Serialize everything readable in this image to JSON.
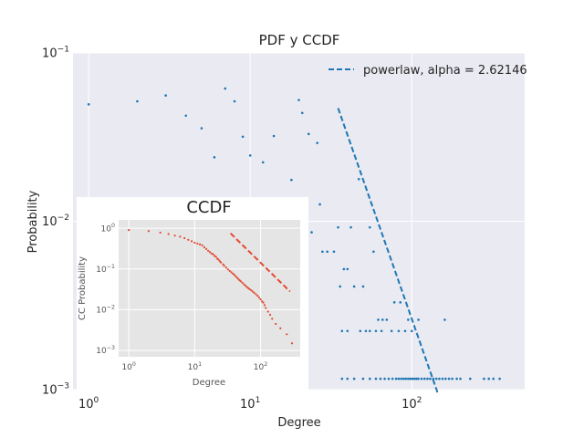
{
  "chart_data": [
    {
      "type": "scatter",
      "title": "PDF y CCDF",
      "xlabel": "Degree",
      "ylabel": "Probability",
      "xscale": "log",
      "yscale": "log",
      "xlim": [
        0.8,
        500
      ],
      "ylim": [
        0.001,
        0.1
      ],
      "grid": true,
      "legend_position": "top-right",
      "x_ticks": [
        {
          "value": 1,
          "base": "10",
          "exp": "0"
        },
        {
          "value": 10,
          "base": "10",
          "exp": "1"
        },
        {
          "value": 100,
          "base": "10",
          "exp": "2"
        }
      ],
      "y_ticks": [
        {
          "value": 0.1,
          "base": "10",
          "exp": "−1"
        },
        {
          "value": 0.01,
          "base": "10",
          "exp": "−2"
        },
        {
          "value": 0.001,
          "base": "10",
          "exp": "−3"
        }
      ],
      "series": [
        {
          "kind": "points",
          "color": "#1f77b4",
          "points": [
            [
              1,
              0.0495
            ],
            [
              2,
              0.0516
            ],
            [
              3,
              0.0559
            ],
            [
              4,
              0.0424
            ],
            [
              5,
              0.0357
            ],
            [
              6,
              0.024
            ],
            [
              7,
              0.0615
            ],
            [
              8,
              0.0516
            ],
            [
              9,
              0.0318
            ],
            [
              10,
              0.0246
            ],
            [
              12,
              0.0224
            ],
            [
              14,
              0.0321
            ],
            [
              16,
              0.0126
            ],
            [
              17,
              0.0126
            ],
            [
              18,
              0.0176
            ],
            [
              20,
              0.0525
            ],
            [
              21,
              0.044
            ],
            [
              23,
              0.033
            ],
            [
              24,
              0.0086
            ],
            [
              26,
              0.0292
            ],
            [
              27,
              0.0126
            ],
            [
              28,
              0.0066
            ],
            [
              30,
              0.0066
            ],
            [
              33,
              0.0066
            ],
            [
              35,
              0.0092
            ],
            [
              36,
              0.0041
            ],
            [
              38,
              0.0052
            ],
            [
              40,
              0.0052
            ],
            [
              42,
              0.0092
            ],
            [
              44,
              0.0041
            ],
            [
              47,
              0.0178
            ],
            [
              50,
              0.0041
            ],
            [
              55,
              0.0092
            ],
            [
              58,
              0.0066
            ],
            [
              62,
              0.0026
            ],
            [
              66,
              0.0026
            ],
            [
              70,
              0.0026
            ],
            [
              78,
              0.0033
            ],
            [
              85,
              0.0033
            ],
            [
              95,
              0.0026
            ],
            [
              110,
              0.0026
            ],
            [
              160,
              0.0026
            ],
            [
              37,
              0.00223
            ],
            [
              40,
              0.00223
            ],
            [
              48,
              0.00223
            ],
            [
              52,
              0.00223
            ],
            [
              55,
              0.00223
            ],
            [
              60,
              0.00223
            ],
            [
              65,
              0.00223
            ],
            [
              75,
              0.00223
            ],
            [
              83,
              0.00223
            ],
            [
              91,
              0.00223
            ],
            [
              100,
              0.00223
            ],
            [
              37,
              0.00116
            ],
            [
              40,
              0.00116
            ],
            [
              44,
              0.00116
            ],
            [
              50,
              0.00116
            ],
            [
              55,
              0.00116
            ],
            [
              60,
              0.00116
            ],
            [
              64,
              0.00116
            ],
            [
              68,
              0.00116
            ],
            [
              72,
              0.00116
            ],
            [
              76,
              0.00116
            ],
            [
              80,
              0.00116
            ],
            [
              83,
              0.00116
            ],
            [
              86,
              0.00116
            ],
            [
              89,
              0.00116
            ],
            [
              92,
              0.00116
            ],
            [
              95,
              0.00116
            ],
            [
              98,
              0.00116
            ],
            [
              101,
              0.00116
            ],
            [
              104,
              0.00116
            ],
            [
              107,
              0.00116
            ],
            [
              110,
              0.00116
            ],
            [
              115,
              0.00116
            ],
            [
              120,
              0.00116
            ],
            [
              125,
              0.00116
            ],
            [
              130,
              0.00116
            ],
            [
              136,
              0.00116
            ],
            [
              142,
              0.00116
            ],
            [
              148,
              0.00116
            ],
            [
              155,
              0.00116
            ],
            [
              162,
              0.00116
            ],
            [
              170,
              0.00116
            ],
            [
              178,
              0.00116
            ],
            [
              190,
              0.00116
            ],
            [
              200,
              0.00116
            ],
            [
              230,
              0.00116
            ],
            [
              280,
              0.00116
            ],
            [
              300,
              0.00116
            ],
            [
              320,
              0.00116
            ],
            [
              350,
              0.00116
            ]
          ]
        },
        {
          "kind": "dashed-line",
          "name": "powerlaw, alpha = 2.62146",
          "color": "#1f77b4",
          "points": [
            [
              35,
              0.047
            ],
            [
              145,
              0.00095
            ]
          ]
        }
      ]
    },
    {
      "type": "scatter",
      "title": "CCDF",
      "xlabel": "Degree",
      "ylabel": "CC Probability",
      "xscale": "log",
      "yscale": "log",
      "xlim": [
        0.7,
        400
      ],
      "ylim": [
        0.0007,
        1.6
      ],
      "x_ticks": [
        {
          "value": 1,
          "base": "10",
          "exp": "0"
        },
        {
          "value": 10,
          "base": "10",
          "exp": "1"
        },
        {
          "value": 100,
          "base": "10",
          "exp": "2"
        }
      ],
      "y_ticks": [
        {
          "value": 1,
          "base": "10",
          "exp": "0"
        },
        {
          "value": 0.1,
          "base": "10",
          "exp": "−1"
        },
        {
          "value": 0.01,
          "base": "10",
          "exp": "−2"
        },
        {
          "value": 0.001,
          "base": "10",
          "exp": "−3"
        }
      ],
      "series": [
        {
          "kind": "points",
          "color": "#e24a33",
          "points": [
            [
              1,
              0.9
            ],
            [
              2,
              0.85
            ],
            [
              3,
              0.78
            ],
            [
              4,
              0.72
            ],
            [
              5,
              0.66
            ],
            [
              6,
              0.62
            ],
            [
              7,
              0.57
            ],
            [
              8,
              0.52
            ],
            [
              9,
              0.48
            ],
            [
              10,
              0.44
            ],
            [
              11,
              0.42
            ],
            [
              12,
              0.4
            ],
            [
              13,
              0.38
            ],
            [
              14,
              0.34
            ],
            [
              15,
              0.31
            ],
            [
              16,
              0.28
            ],
            [
              17,
              0.26
            ],
            [
              18,
              0.24
            ],
            [
              19,
              0.23
            ],
            [
              20,
              0.21
            ],
            [
              21,
              0.2
            ],
            [
              22,
              0.18
            ],
            [
              23,
              0.17
            ],
            [
              24,
              0.155
            ],
            [
              25,
              0.145
            ],
            [
              27,
              0.13
            ],
            [
              28,
              0.12
            ],
            [
              30,
              0.108
            ],
            [
              32,
              0.098
            ],
            [
              34,
              0.09
            ],
            [
              36,
              0.083
            ],
            [
              38,
              0.077
            ],
            [
              40,
              0.072
            ],
            [
              42,
              0.066
            ],
            [
              44,
              0.061
            ],
            [
              46,
              0.057
            ],
            [
              48,
              0.053
            ],
            [
              50,
              0.05
            ],
            [
              53,
              0.046
            ],
            [
              56,
              0.042
            ],
            [
              59,
              0.039
            ],
            [
              62,
              0.036
            ],
            [
              65,
              0.034
            ],
            [
              68,
              0.032
            ],
            [
              72,
              0.03
            ],
            [
              76,
              0.028
            ],
            [
              80,
              0.026
            ],
            [
              85,
              0.024
            ],
            [
              90,
              0.022
            ],
            [
              95,
              0.02
            ],
            [
              100,
              0.018
            ],
            [
              105,
              0.016
            ],
            [
              110,
              0.015
            ],
            [
              115,
              0.013
            ],
            [
              120,
              0.011
            ],
            [
              130,
              0.009
            ],
            [
              140,
              0.0075
            ],
            [
              150,
              0.006
            ],
            [
              170,
              0.0045
            ],
            [
              200,
              0.0035
            ],
            [
              250,
              0.0025
            ],
            [
              300,
              0.0015
            ]
          ]
        },
        {
          "kind": "dashed-line",
          "color": "#e24a33",
          "points": [
            [
              35,
              0.75
            ],
            [
              280,
              0.028
            ]
          ]
        }
      ]
    }
  ]
}
